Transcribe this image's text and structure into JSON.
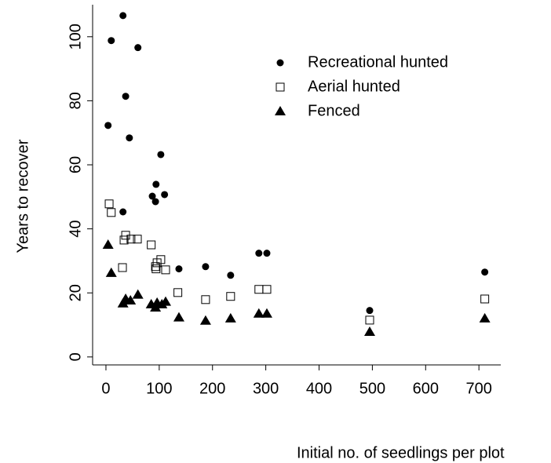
{
  "chart_data": {
    "type": "scatter",
    "xlabel": "Initial no. of seedlings per plot",
    "ylabel": "Years to recover",
    "xlim": [
      -25,
      741
    ],
    "ylim": [
      -2,
      110
    ],
    "xticks": [
      0,
      100,
      200,
      300,
      400,
      500,
      600,
      700
    ],
    "yticks": [
      0,
      20,
      40,
      60,
      80,
      100
    ],
    "legend": "top-right",
    "series": [
      {
        "name": "Recreational hunted",
        "color": "#000000",
        "marker": "circle",
        "x": [
          32,
          10,
          60,
          37,
          4,
          44,
          103,
          94,
          110,
          87,
          93,
          32,
          137,
          187,
          234,
          287,
          302,
          495,
          711
        ],
        "values": [
          106.6,
          98.8,
          96.6,
          81.4,
          72.3,
          68.4,
          63.2,
          53.9,
          50.7,
          50.2,
          48.5,
          45.3,
          27.5,
          28.2,
          25.5,
          32.4,
          32.4,
          14.5,
          26.5
        ]
      },
      {
        "name": "Aerial hunted",
        "color": "#000000",
        "marker": "square",
        "x": [
          6,
          10,
          37,
          34,
          31,
          47,
          59,
          85,
          103,
          96,
          93,
          94,
          112,
          135,
          187,
          234,
          287,
          302,
          495,
          711
        ],
        "values": [
          47.8,
          45.1,
          38.0,
          36.5,
          27.9,
          36.8,
          36.8,
          35.0,
          30.4,
          29.4,
          28.2,
          27.5,
          27.2,
          20.1,
          17.9,
          18.9,
          21.1,
          21.1,
          11.5,
          18.1
        ]
      },
      {
        "name": "Fenced",
        "color": "#000000",
        "marker": "triangle",
        "x": [
          4,
          10,
          32,
          37,
          46,
          60,
          85,
          93,
          96,
          105,
          112,
          137,
          187,
          234,
          287,
          302,
          495,
          711
        ],
        "values": [
          35.0,
          26.2,
          16.7,
          18.1,
          17.6,
          19.4,
          16.4,
          15.4,
          16.9,
          16.4,
          17.2,
          12.3,
          11.3,
          12.0,
          13.5,
          13.5,
          7.8,
          12.0
        ]
      }
    ]
  }
}
